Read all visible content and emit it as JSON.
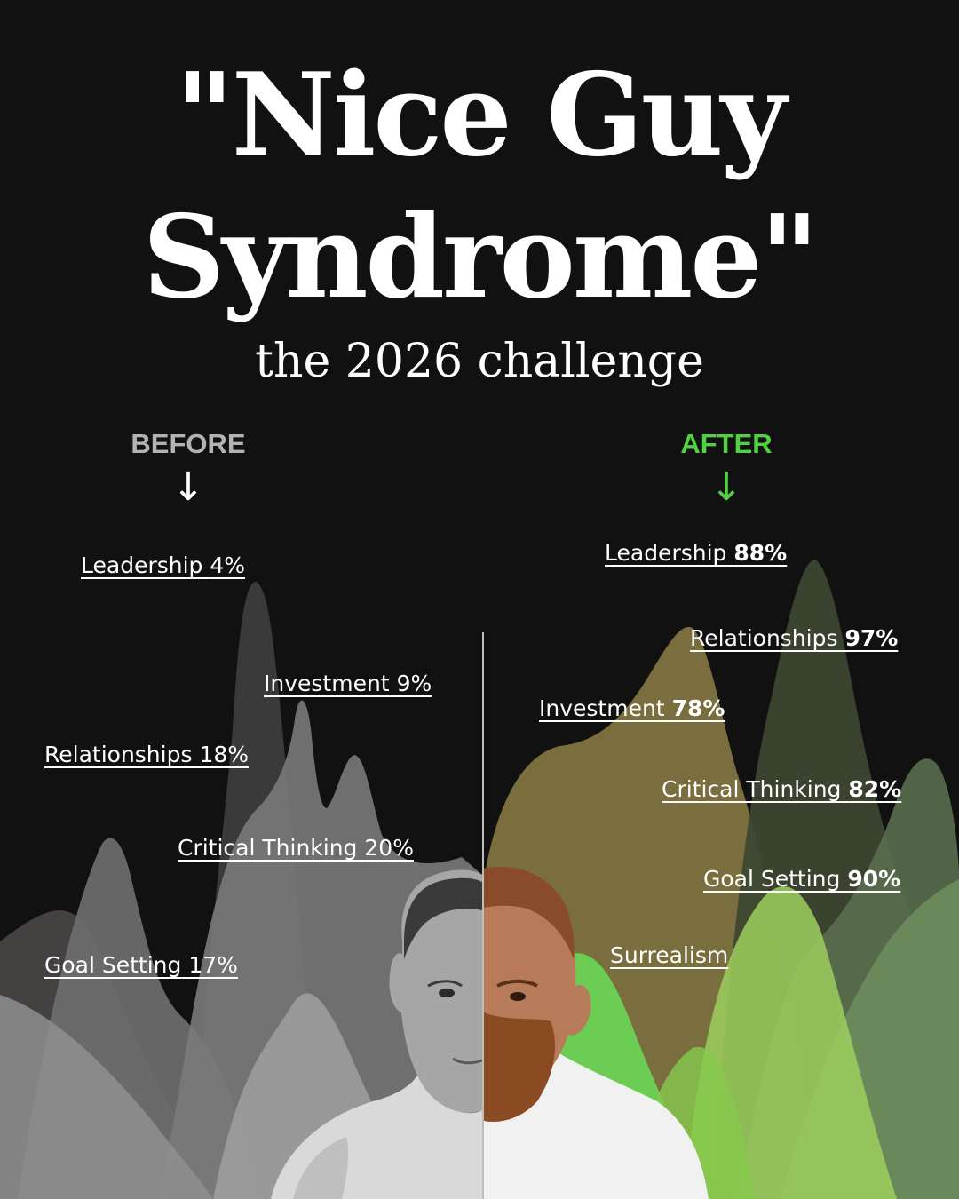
{
  "title_line1": "\"Nice Guy",
  "title_line2": "Syndrome\"",
  "subtitle": "the 2026 challenge",
  "before": {
    "heading": "BEFORE",
    "arrow": "↓",
    "color": "#b3b3b3",
    "items": [
      {
        "label": "Leadership",
        "value": "4%"
      },
      {
        "label": "Investment",
        "value": "9%"
      },
      {
        "label": "Relationships",
        "value": "18%"
      },
      {
        "label": "Critical Thinking",
        "value": "20%"
      },
      {
        "label": "Goal Setting",
        "value": "17%"
      }
    ]
  },
  "after": {
    "heading": "AFTER",
    "arrow": "↓",
    "color": "#4fd140",
    "items": [
      {
        "label": "Leadership",
        "value": "88%"
      },
      {
        "label": "Relationships",
        "value": "97%"
      },
      {
        "label": "Investment",
        "value": "78%"
      },
      {
        "label": "Critical Thinking",
        "value": "82%"
      },
      {
        "label": "Goal Setting",
        "value": "90%"
      },
      {
        "label": "Surrealism",
        "value": ""
      }
    ]
  },
  "colors": {
    "background": "#111111",
    "after_accent": "#4fd140",
    "before_accent": "#b3b3b3"
  }
}
